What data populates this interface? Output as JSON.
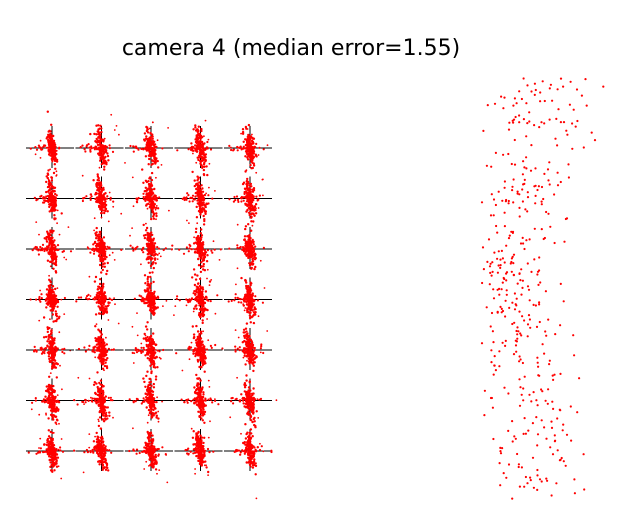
{
  "chart_data": [
    {
      "type": "scatter",
      "title": "camera 4 (median error=1.55)",
      "description_of_marks": "calibration grid: 5 columns x 7 rows of target crosses with dense red reprojection points",
      "grid_columns": 5,
      "grid_rows": 7,
      "marker_color": "#ff0000",
      "crosshair_color": "#000000",
      "axes_visible": false,
      "grid": false,
      "legend": "none"
    },
    {
      "type": "scatter",
      "title": "",
      "marker_color": "#ff0000",
      "axes_visible": false,
      "grid": false,
      "legend": "none",
      "point_count": 420
    }
  ]
}
